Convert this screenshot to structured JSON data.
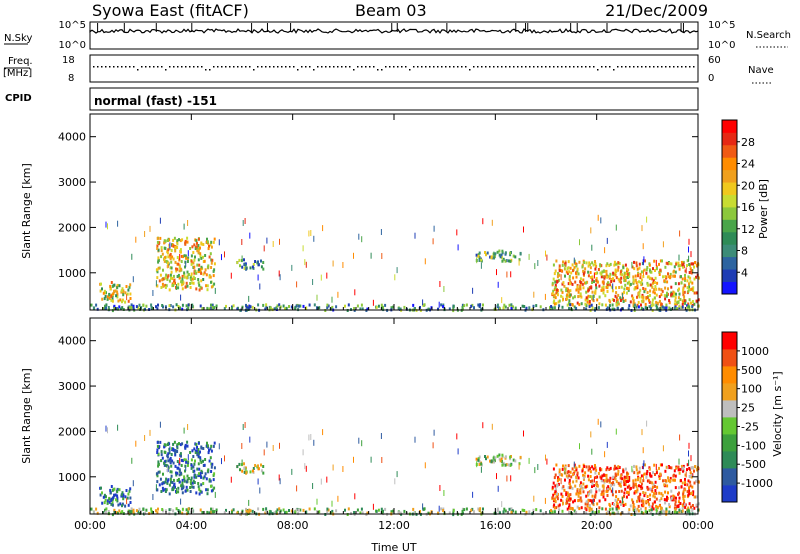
{
  "header": {
    "station": "Syowa East (fitACF)",
    "beam": "Beam 03",
    "date": "21/Dec/2009"
  },
  "status_panels": {
    "nsky_label": "N.Sky",
    "nsky_ticks": [
      "10^5",
      "10^0"
    ],
    "nsearch_label": "N.Search",
    "nsearch_ticks": [
      "10^5",
      "10^0"
    ],
    "freq_label": "Freq.",
    "freq_unit": "[MHz]",
    "freq_ticks": [
      "18",
      "8"
    ],
    "nave_label": "Nave",
    "nave_ticks": [
      "60",
      "0"
    ],
    "cpid_label": "CPID",
    "cpid_value": "normal (fast) -151"
  },
  "chart_data": [
    {
      "type": "heatmap",
      "panel": "power",
      "ylabel": "Slant Range [km]",
      "xlabel": "",
      "x_ticks": [
        "00:00",
        "04:00",
        "08:00",
        "12:00",
        "16:00",
        "20:00",
        "00:00"
      ],
      "y_ticks": [
        "1000",
        "2000",
        "3000",
        "4000"
      ],
      "xlim_hours": [
        0,
        24
      ],
      "ylim_km": [
        180,
        4500
      ],
      "colorbar": {
        "label": "Power [dB]",
        "ticks": [
          "4",
          "8",
          "12",
          "16",
          "20",
          "24",
          "28"
        ],
        "colors": [
          "#1414ff",
          "#1e3cb4",
          "#2d64a0",
          "#3c8c78",
          "#2e8b57",
          "#4aa54a",
          "#8cc83c",
          "#c8dc32",
          "#f0c81e",
          "#f0a01e",
          "#ff8c00",
          "#f05a14",
          "#e62814",
          "#ff0000"
        ]
      },
      "echo_regions": [
        {
          "t0": 0.3,
          "t1": 1.6,
          "r0": 380,
          "r1": 820,
          "level": 0.55
        },
        {
          "t0": 2.6,
          "t1": 4.9,
          "r0": 650,
          "r1": 1800,
          "level": 0.6
        },
        {
          "t0": 5.6,
          "t1": 6.8,
          "r0": 1100,
          "r1": 1320,
          "level": 0.3
        },
        {
          "t0": 15.2,
          "t1": 17.0,
          "r0": 1280,
          "r1": 1520,
          "level": 0.35
        },
        {
          "t0": 18.2,
          "t1": 24.0,
          "r0": 300,
          "r1": 1300,
          "level": 0.65
        },
        {
          "t0": 0.0,
          "t1": 24.0,
          "r0": 200,
          "r1": 330,
          "level": 0.3
        }
      ]
    },
    {
      "type": "heatmap",
      "panel": "velocity",
      "ylabel": "Slant Range [km]",
      "xlabel": "Time UT",
      "x_ticks": [
        "00:00",
        "04:00",
        "08:00",
        "12:00",
        "16:00",
        "20:00",
        "00:00"
      ],
      "y_ticks": [
        "1000",
        "2000",
        "3000",
        "4000"
      ],
      "xlim_hours": [
        0,
        24
      ],
      "ylim_km": [
        180,
        4500
      ],
      "colorbar": {
        "label": "Velocity [m s⁻¹]",
        "ticks": [
          "1000",
          "500",
          "100",
          "25",
          "-25",
          "-100",
          "-500",
          "-1000"
        ],
        "colors": [
          "#1e3cc8",
          "#2e5aa0",
          "#2e8b57",
          "#3ca03c",
          "#64c832",
          "#bebebe",
          "#f0a01e",
          "#ff8c00",
          "#f05014",
          "#ff0000"
        ]
      },
      "echo_regions": [
        {
          "t0": 0.3,
          "t1": 1.6,
          "r0": 380,
          "r1": 820,
          "level": 0.8
        },
        {
          "t0": 2.6,
          "t1": 4.9,
          "r0": 650,
          "r1": 1800,
          "level": 0.82
        },
        {
          "t0": 5.6,
          "t1": 6.8,
          "r0": 1100,
          "r1": 1320,
          "level": 0.5
        },
        {
          "t0": 15.2,
          "t1": 17.0,
          "r0": 1280,
          "r1": 1520,
          "level": 0.5
        },
        {
          "t0": 18.2,
          "t1": 24.0,
          "r0": 300,
          "r1": 1300,
          "level": 0.2
        },
        {
          "t0": 0.0,
          "t1": 24.0,
          "r0": 200,
          "r1": 330,
          "level": 0.55
        }
      ]
    }
  ]
}
